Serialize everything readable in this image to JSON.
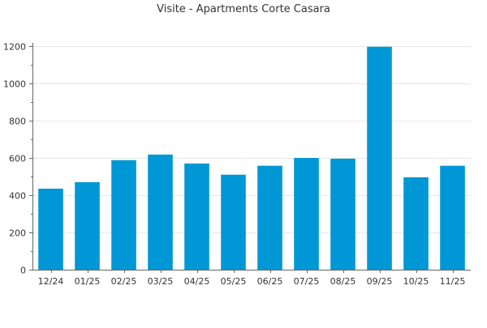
{
  "chart_data": {
    "type": "bar",
    "title": "Visite - Apartments Corte Casara",
    "xlabel": "",
    "ylabel": "",
    "categories": [
      "12/24",
      "01/25",
      "02/25",
      "03/25",
      "04/25",
      "05/25",
      "06/25",
      "07/25",
      "08/25",
      "09/25",
      "10/25",
      "11/25"
    ],
    "values": [
      435,
      470,
      588,
      618,
      570,
      510,
      558,
      600,
      596,
      1197,
      496,
      558
    ],
    "ylim": [
      0,
      1200
    ],
    "yticks": [
      0,
      200,
      400,
      600,
      800,
      1000,
      1200
    ],
    "grid": true,
    "legend": "none",
    "bar_color": "#0097d6"
  }
}
